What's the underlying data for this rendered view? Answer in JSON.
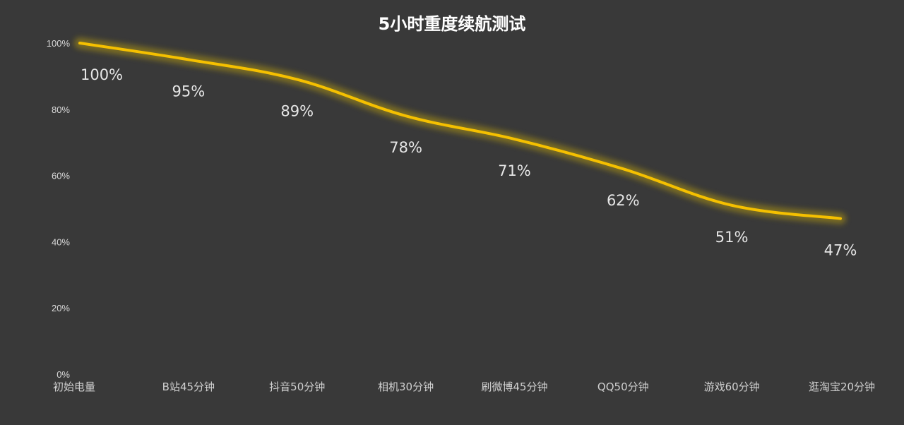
{
  "colors": {
    "background": "#393939",
    "line": "#f5c000",
    "glow": "#8f7d1a",
    "title": "#ffffff",
    "text": "#d9d9d9"
  },
  "chart_data": {
    "type": "line",
    "title": "5小时重度续航测试",
    "xlabel": "",
    "ylabel": "",
    "ylim": [
      0,
      100
    ],
    "y_ticks": [
      "0%",
      "20%",
      "40%",
      "60%",
      "80%",
      "100%"
    ],
    "y_tick_values": [
      0,
      20,
      40,
      60,
      80,
      100
    ],
    "grid": false,
    "legend": "none",
    "categories": [
      "初始电量",
      "B站45分钟",
      "抖音50分钟",
      "相机30分钟",
      "刷微博45分钟",
      "QQ50分钟",
      "游戏60分钟",
      "逛淘宝20分钟"
    ],
    "series": [
      {
        "values": [
          100,
          95,
          89,
          78,
          71,
          62,
          51,
          47
        ],
        "data_labels": [
          "100%",
          "95%",
          "89%",
          "78%",
          "71%",
          "62%",
          "51%",
          "47%"
        ]
      }
    ]
  }
}
